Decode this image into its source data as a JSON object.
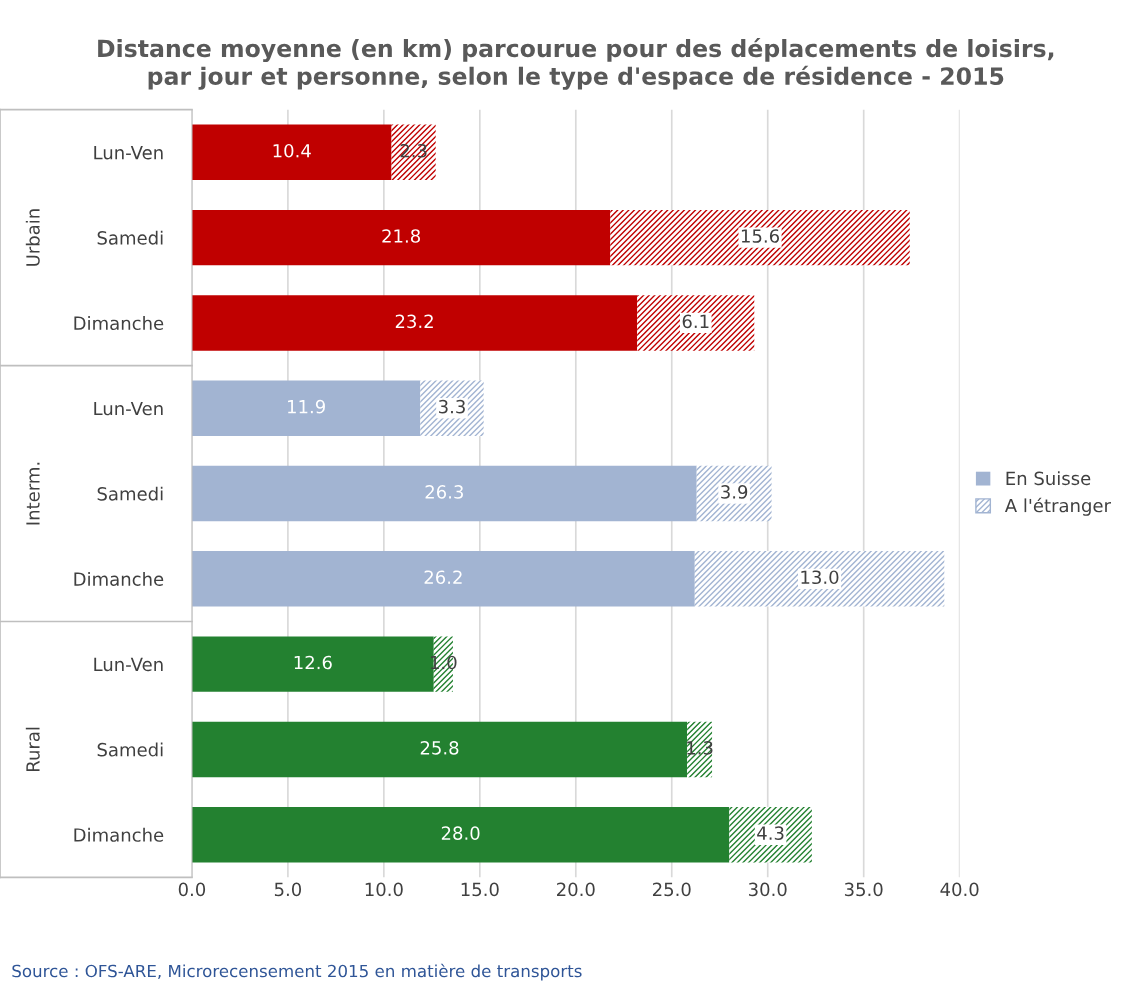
{
  "chart_data": {
    "type": "bar",
    "orientation": "horizontal",
    "stacked": true,
    "title": "Distance moyenne (en km) parcourue pour des déplacements de loisirs,\npar jour et personne, selon le type d'espace de résidence - 2015",
    "categories": [
      "Lun-Ven",
      "Samedi",
      "Dimanche",
      "Lun-Ven",
      "Samedi",
      "Dimanche",
      "Lun-Ven",
      "Samedi",
      "Dimanche"
    ],
    "series": [
      {
        "name": "En Suisse",
        "color": "#a2b4d2",
        "colors": [
          "#c00000",
          "#c00000",
          "#c00000",
          "#a2b4d2",
          "#a2b4d2",
          "#a2b4d2",
          "#238130",
          "#238130",
          "#238130"
        ],
        "values": [
          10.4,
          21.8,
          23.2,
          11.9,
          26.3,
          26.2,
          12.6,
          25.8,
          28.0
        ],
        "value_labels": [
          "10.4",
          "21.8",
          "23.2",
          "11.9",
          "26.3",
          "26.2",
          "12.6",
          "25.8",
          "28.0"
        ]
      },
      {
        "name": "A l'étranger",
        "color": "#a2b4d2",
        "colors": [
          "#c00000",
          "#c00000",
          "#c00000",
          "#a2b4d2",
          "#a2b4d2",
          "#a2b4d2",
          "#238130",
          "#238130",
          "#238130"
        ],
        "values": [
          2.3,
          15.6,
          6.1,
          3.3,
          3.9,
          13.0,
          1.0,
          1.3,
          4.3
        ],
        "value_labels": [
          "2.3",
          "15.6",
          "6.1",
          "3.3",
          "3.9",
          "13.0",
          "1.0",
          "1.3",
          "4.3"
        ]
      }
    ],
    "xlim": [
      0,
      40
    ],
    "xticks": [
      {
        "value": 0,
        "label": "0.0"
      },
      {
        "value": 5,
        "label": "5.0"
      },
      {
        "value": 10,
        "label": "10.0"
      },
      {
        "value": 15,
        "label": "15.0"
      },
      {
        "value": 20,
        "label": "20.0"
      },
      {
        "value": 25,
        "label": "25.0"
      },
      {
        "value": 30,
        "label": "30.0"
      },
      {
        "value": 35,
        "label": "35.0"
      },
      {
        "value": 40,
        "label": "40.0"
      }
    ],
    "grid": "x",
    "legend": "right",
    "annotations": [
      {
        "text": "Urbain"
      },
      {
        "text": "Interm."
      },
      {
        "text": "Rural"
      },
      "Source : OFS-ARE, Microrecensement 2015 en matière de transports"
    ]
  }
}
